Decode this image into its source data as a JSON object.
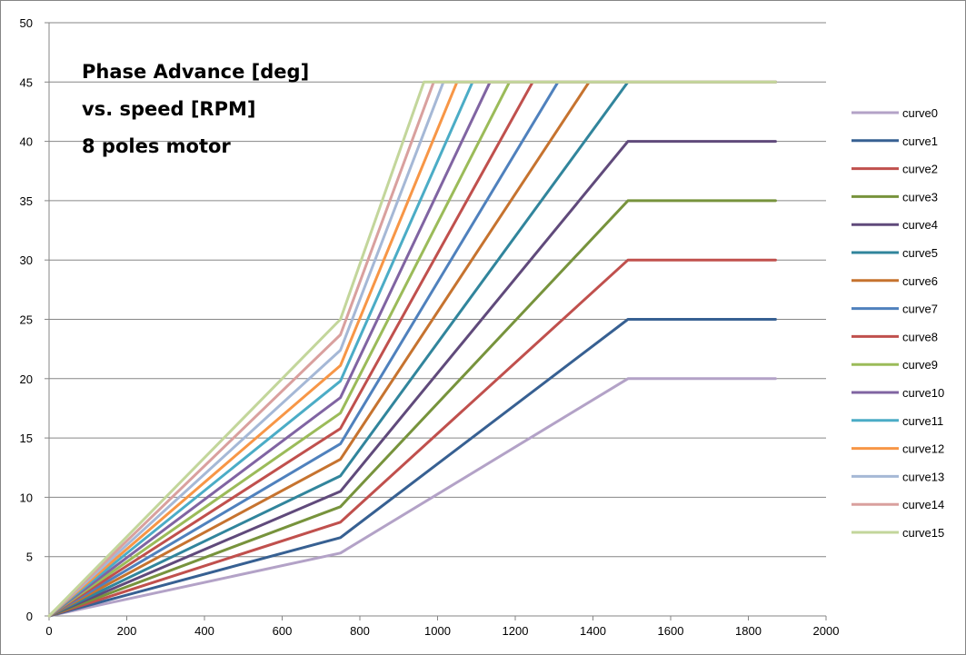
{
  "chart_data": {
    "type": "line",
    "title": [
      "Phase Advance [deg]",
      "vs. speed [RPM]",
      "8 poles motor"
    ],
    "xlim": [
      0,
      2000
    ],
    "ylim": [
      0,
      50
    ],
    "x_ticks": [
      0,
      200,
      400,
      600,
      800,
      1000,
      1200,
      1400,
      1600,
      1800,
      2000
    ],
    "y_ticks": [
      0,
      5,
      10,
      15,
      20,
      25,
      30,
      35,
      40,
      45,
      50
    ],
    "grid": "horizontal",
    "legend_position": "right",
    "series": [
      {
        "name": "curve0",
        "color": "#B3A2C7",
        "points": [
          [
            0,
            0
          ],
          [
            750,
            5.3
          ],
          [
            1490,
            20
          ],
          [
            1870,
            20
          ]
        ]
      },
      {
        "name": "curve1",
        "color": "#376092",
        "points": [
          [
            0,
            0
          ],
          [
            750,
            6.6
          ],
          [
            1490,
            25
          ],
          [
            1870,
            25
          ]
        ]
      },
      {
        "name": "curve2",
        "color": "#C0504D",
        "points": [
          [
            0,
            0
          ],
          [
            750,
            7.9
          ],
          [
            1490,
            30
          ],
          [
            1870,
            30
          ]
        ]
      },
      {
        "name": "curve3",
        "color": "#77933C",
        "points": [
          [
            0,
            0
          ],
          [
            750,
            9.2
          ],
          [
            1490,
            35
          ],
          [
            1870,
            35
          ]
        ]
      },
      {
        "name": "curve4",
        "color": "#604A7B",
        "points": [
          [
            0,
            0
          ],
          [
            750,
            10.5
          ],
          [
            1490,
            40
          ],
          [
            1870,
            40
          ]
        ]
      },
      {
        "name": "curve5",
        "color": "#31859C",
        "points": [
          [
            0,
            0
          ],
          [
            750,
            11.8
          ],
          [
            1490,
            45
          ],
          [
            1870,
            45
          ]
        ]
      },
      {
        "name": "curve6",
        "color": "#C6732F",
        "points": [
          [
            0,
            0
          ],
          [
            750,
            13.2
          ],
          [
            1390,
            45
          ],
          [
            1870,
            45
          ]
        ]
      },
      {
        "name": "curve7",
        "color": "#4F81BD",
        "points": [
          [
            0,
            0
          ],
          [
            750,
            14.5
          ],
          [
            1310,
            45
          ],
          [
            1870,
            45
          ]
        ]
      },
      {
        "name": "curve8",
        "color": "#C0504D",
        "points": [
          [
            0,
            0
          ],
          [
            750,
            15.8
          ],
          [
            1245,
            45
          ],
          [
            1870,
            45
          ]
        ]
      },
      {
        "name": "curve9",
        "color": "#9BBB59",
        "points": [
          [
            0,
            0
          ],
          [
            750,
            17.1
          ],
          [
            1185,
            45
          ],
          [
            1870,
            45
          ]
        ]
      },
      {
        "name": "curve10",
        "color": "#8064A2",
        "points": [
          [
            0,
            0
          ],
          [
            750,
            18.4
          ],
          [
            1135,
            45
          ],
          [
            1870,
            45
          ]
        ]
      },
      {
        "name": "curve11",
        "color": "#4BACC6",
        "points": [
          [
            0,
            0
          ],
          [
            750,
            19.8
          ],
          [
            1090,
            45
          ],
          [
            1870,
            45
          ]
        ]
      },
      {
        "name": "curve12",
        "color": "#F79646",
        "points": [
          [
            0,
            0
          ],
          [
            750,
            21.1
          ],
          [
            1050,
            45
          ],
          [
            1870,
            45
          ]
        ]
      },
      {
        "name": "curve13",
        "color": "#A5B8D6",
        "points": [
          [
            0,
            0
          ],
          [
            750,
            22.4
          ],
          [
            1015,
            45
          ],
          [
            1870,
            45
          ]
        ]
      },
      {
        "name": "curve14",
        "color": "#D9A09E",
        "points": [
          [
            0,
            0
          ],
          [
            750,
            23.7
          ],
          [
            990,
            45
          ],
          [
            1870,
            45
          ]
        ]
      },
      {
        "name": "curve15",
        "color": "#C3D69B",
        "points": [
          [
            0,
            0
          ],
          [
            750,
            25.0
          ],
          [
            965,
            45
          ],
          [
            1870,
            45
          ]
        ]
      }
    ]
  }
}
